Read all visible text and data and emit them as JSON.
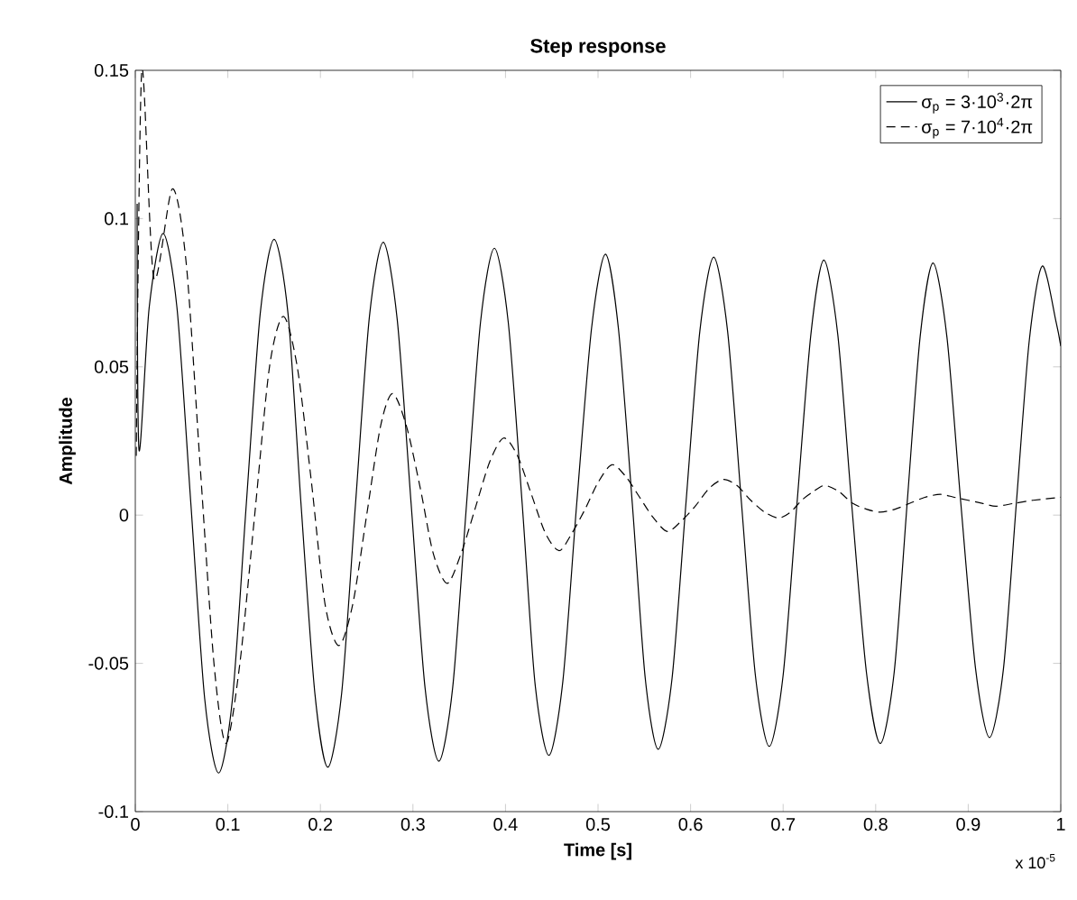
{
  "chart_data": {
    "type": "line",
    "title": "Step response",
    "xlabel": "Time [s]",
    "ylabel": "Amplitude",
    "annotations": [
      "x 10$^{-5}$"
    ],
    "xlim": [
      0,
      1
    ],
    "ylim": [
      -0.1,
      0.15
    ],
    "xticks": [
      0,
      0.1,
      0.2,
      0.3,
      0.4,
      0.5,
      0.6,
      0.7,
      0.8,
      0.9,
      1
    ],
    "yticks": [
      -0.1,
      -0.05,
      0,
      0.05,
      0.1,
      0.15
    ],
    "grid": false,
    "legend": "top right",
    "series": [
      {
        "name": "σ$_{p}$ = 3·10$^{3}$·2π",
        "color": "#000000",
        "line_style": "solid",
        "x": [
          0.002,
          0.004,
          0.015,
          0.03,
          0.045,
          0.06,
          0.075,
          0.09,
          0.105,
          0.12,
          0.135,
          0.15,
          0.165,
          0.179,
          0.194,
          0.208,
          0.223,
          0.238,
          0.253,
          0.268,
          0.283,
          0.298,
          0.313,
          0.328,
          0.343,
          0.358,
          0.373,
          0.388,
          0.403,
          0.418,
          0.432,
          0.447,
          0.462,
          0.477,
          0.493,
          0.508,
          0.522,
          0.537,
          0.551,
          0.565,
          0.58,
          0.595,
          0.61,
          0.625,
          0.64,
          0.655,
          0.67,
          0.685,
          0.7,
          0.715,
          0.73,
          0.744,
          0.759,
          0.774,
          0.79,
          0.805,
          0.82,
          0.834,
          0.848,
          0.862,
          0.877,
          0.892,
          0.908,
          0.923,
          0.938,
          0.952,
          0.966,
          0.98,
          0.995,
          1
        ],
        "values": [
          0.105,
          0.022,
          0.07,
          0.095,
          0.07,
          0.004,
          -0.062,
          -0.087,
          -0.062,
          0.004,
          0.068,
          0.093,
          0.068,
          0.004,
          -0.06,
          -0.085,
          -0.06,
          0.004,
          0.067,
          0.092,
          0.066,
          0.004,
          -0.058,
          -0.083,
          -0.058,
          0.004,
          0.065,
          0.09,
          0.065,
          0.004,
          -0.057,
          -0.081,
          -0.056,
          0.004,
          0.063,
          0.088,
          0.063,
          0.004,
          -0.055,
          -0.079,
          -0.055,
          0.004,
          0.062,
          0.087,
          0.062,
          0.004,
          -0.054,
          -0.078,
          -0.054,
          0.004,
          0.061,
          0.086,
          0.061,
          0.004,
          -0.053,
          -0.077,
          -0.053,
          0.004,
          0.06,
          0.085,
          0.06,
          0.004,
          -0.052,
          -0.075,
          -0.052,
          0.004,
          0.059,
          0.084,
          0.065,
          0.057
        ]
      },
      {
        "name": "σ$_{p}$ = 7·10$^{4}$·2π",
        "color": "#000000",
        "line_style": "dashed",
        "x": [
          0.001,
          0.007,
          0.02,
          0.04,
          0.055,
          0.07,
          0.085,
          0.098,
          0.113,
          0.129,
          0.145,
          0.16,
          0.175,
          0.19,
          0.205,
          0.22,
          0.235,
          0.25,
          0.265,
          0.278,
          0.293,
          0.308,
          0.322,
          0.337,
          0.352,
          0.367,
          0.383,
          0.398,
          0.413,
          0.428,
          0.443,
          0.458,
          0.472,
          0.486,
          0.5,
          0.515,
          0.53,
          0.545,
          0.56,
          0.575,
          0.59,
          0.605,
          0.62,
          0.635,
          0.65,
          0.665,
          0.68,
          0.695,
          0.708,
          0.72,
          0.733,
          0.745,
          0.76,
          0.775,
          0.79,
          0.805,
          0.821,
          0.837,
          0.853,
          0.87,
          0.885,
          0.9,
          0.915,
          0.93,
          0.95,
          0.97,
          1
        ],
        "values": [
          0.02,
          0.15,
          0.08,
          0.11,
          0.085,
          0.017,
          -0.05,
          -0.077,
          -0.05,
          0.0,
          0.05,
          0.067,
          0.05,
          0.012,
          -0.03,
          -0.044,
          -0.03,
          0.0,
          0.03,
          0.041,
          0.03,
          0.009,
          -0.013,
          -0.023,
          -0.013,
          0.002,
          0.018,
          0.026,
          0.02,
          0.007,
          -0.006,
          -0.012,
          -0.006,
          0.002,
          0.011,
          0.017,
          0.013,
          0.006,
          -0.001,
          -0.0055,
          -0.002,
          0.003,
          0.009,
          0.012,
          0.01,
          0.005,
          0.001,
          -0.001,
          0.001,
          0.005,
          0.008,
          0.01,
          0.008,
          0.004,
          0.002,
          0.001,
          0.002,
          0.004,
          0.006,
          0.007,
          0.006,
          0.005,
          0.004,
          0.003,
          0.004,
          0.005,
          0.006
        ]
      }
    ]
  }
}
